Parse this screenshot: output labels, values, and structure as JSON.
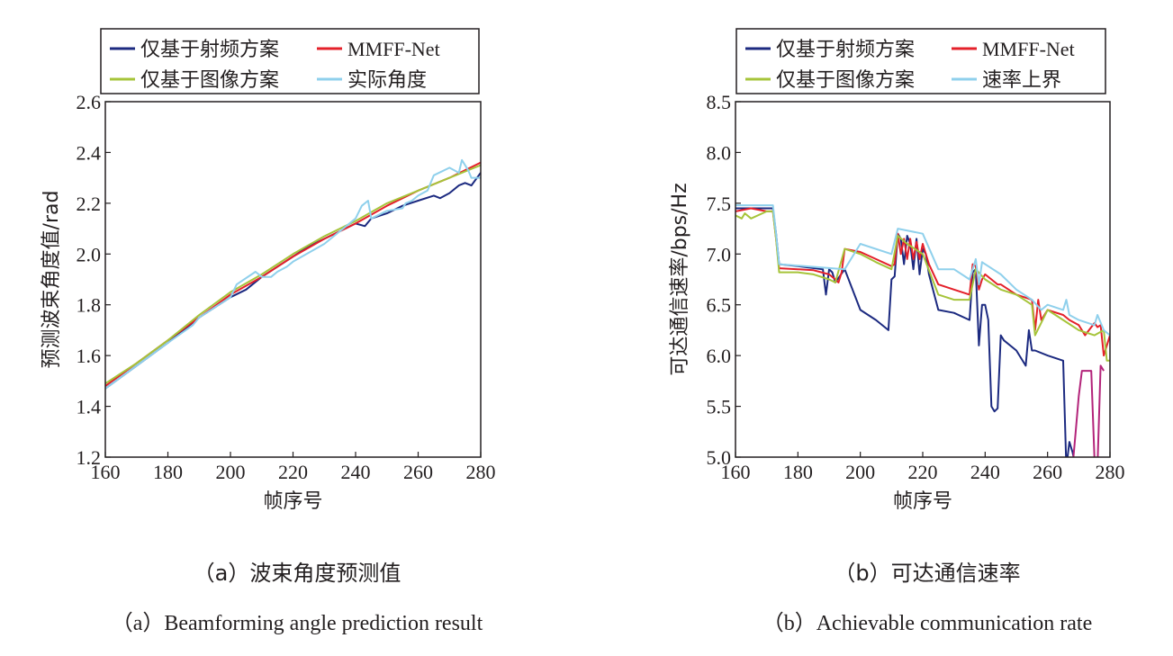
{
  "chart_data": [
    {
      "type": "line",
      "id": "a",
      "xlabel": "帧序号",
      "ylabel": "预测波束角度值/rad",
      "xlim": [
        160,
        280
      ],
      "ylim": [
        1.2,
        2.6
      ],
      "xticks": [
        160,
        180,
        200,
        220,
        240,
        260,
        280
      ],
      "yticks": [
        1.2,
        1.4,
        1.6,
        1.8,
        2.0,
        2.2,
        2.4,
        2.6
      ],
      "ytick_labels": [
        "1.2",
        "1.4",
        "1.6",
        "1.8",
        "2.0",
        "2.2",
        "2.4",
        "2.6"
      ],
      "legend_position": "top",
      "grid": false,
      "caption_zh": "（a）波束角度预测值",
      "caption_en": "（a）Beamforming angle prediction result",
      "series": [
        {
          "name": "仅基于射频方案",
          "color": "#1c2a80",
          "x": [
            160,
            170,
            180,
            190,
            200,
            205,
            210,
            215,
            220,
            225,
            230,
            235,
            240,
            243,
            245,
            250,
            255,
            260,
            265,
            267,
            270,
            273,
            275,
            277,
            280
          ],
          "y": [
            1.47,
            1.56,
            1.65,
            1.75,
            1.83,
            1.86,
            1.91,
            1.95,
            1.99,
            2.03,
            2.06,
            2.09,
            2.12,
            2.11,
            2.14,
            2.16,
            2.19,
            2.21,
            2.23,
            2.22,
            2.24,
            2.27,
            2.28,
            2.27,
            2.32
          ]
        },
        {
          "name": "MMFF-Net",
          "color": "#e4202a",
          "x": [
            160,
            170,
            180,
            190,
            200,
            210,
            220,
            230,
            240,
            250,
            260,
            270,
            280
          ],
          "y": [
            1.48,
            1.57,
            1.66,
            1.75,
            1.84,
            1.91,
            1.99,
            2.06,
            2.12,
            2.19,
            2.25,
            2.3,
            2.36
          ]
        },
        {
          "name": "仅基于图像方案",
          "color": "#a6c43a",
          "x": [
            160,
            170,
            180,
            190,
            200,
            210,
            220,
            230,
            240,
            250,
            260,
            270,
            280
          ],
          "y": [
            1.49,
            1.57,
            1.66,
            1.76,
            1.85,
            1.92,
            2.0,
            2.07,
            2.13,
            2.2,
            2.25,
            2.3,
            2.35
          ]
        },
        {
          "name": "实际角度",
          "color": "#8fd0ec",
          "x": [
            160,
            170,
            180,
            188,
            190,
            200,
            202,
            208,
            210,
            213,
            215,
            218,
            220,
            230,
            240,
            242,
            244,
            245,
            250,
            255,
            256,
            258,
            260,
            263,
            265,
            270,
            273,
            274,
            276,
            277,
            279,
            280
          ],
          "y": [
            1.47,
            1.56,
            1.65,
            1.72,
            1.75,
            1.83,
            1.88,
            1.93,
            1.91,
            1.91,
            1.93,
            1.95,
            1.97,
            2.04,
            2.14,
            2.19,
            2.21,
            2.14,
            2.17,
            2.18,
            2.2,
            2.21,
            2.23,
            2.25,
            2.31,
            2.34,
            2.32,
            2.37,
            2.33,
            2.3,
            2.3,
            2.3
          ]
        }
      ]
    },
    {
      "type": "line",
      "id": "b",
      "xlabel": "帧序号",
      "ylabel": "可达通信速率/bps/Hz",
      "xlim": [
        160,
        280
      ],
      "ylim": [
        5.0,
        8.5
      ],
      "xticks": [
        160,
        180,
        200,
        220,
        240,
        260,
        280
      ],
      "yticks": [
        5.0,
        5.5,
        6.0,
        6.5,
        7.0,
        7.5,
        8.0,
        8.5
      ],
      "ytick_labels": [
        "5.0",
        "5.5",
        "6.0",
        "6.5",
        "7.0",
        "7.5",
        "8.0",
        "8.5"
      ],
      "legend_position": "top",
      "grid": false,
      "caption_zh": "（b）可达通信速率",
      "caption_en": "（b）Achievable communication rate",
      "series": [
        {
          "name": "仅基于射频方案",
          "color": "#1c2a80",
          "x": [
            160,
            172,
            173,
            174,
            180,
            188,
            189,
            190,
            191,
            192,
            195,
            200,
            205,
            209,
            210,
            211,
            212,
            213,
            214,
            215,
            216,
            217,
            218,
            219,
            220,
            221,
            222,
            225,
            230,
            235,
            236,
            237,
            238,
            239,
            240,
            241,
            242,
            243,
            244,
            245,
            246,
            250,
            253,
            254,
            255,
            256,
            260,
            265,
            266,
            267,
            268,
            269
          ],
          "y": [
            7.45,
            7.45,
            7.2,
            6.9,
            6.88,
            6.85,
            6.6,
            6.85,
            6.82,
            6.72,
            6.85,
            6.45,
            6.35,
            6.25,
            6.75,
            6.78,
            7.2,
            7.15,
            6.9,
            7.18,
            7.1,
            6.85,
            7.15,
            6.8,
            7.05,
            7.0,
            6.8,
            6.45,
            6.42,
            6.35,
            6.82,
            6.85,
            6.1,
            6.5,
            6.5,
            6.35,
            5.5,
            5.45,
            5.48,
            6.2,
            6.15,
            6.05,
            5.9,
            6.25,
            6.05,
            6.05,
            6.0,
            5.95,
            4.9,
            5.15,
            5.05,
            4.9
          ]
        },
        {
          "name": "MMFF-Net",
          "color": "#e4202a",
          "x": [
            160,
            165,
            170,
            172,
            173,
            174,
            180,
            185,
            190,
            192,
            193,
            194,
            195,
            200,
            205,
            210,
            211,
            212,
            213,
            214,
            215,
            216,
            217,
            218,
            219,
            220,
            222,
            225,
            230,
            235,
            236,
            237,
            238,
            239,
            240,
            242,
            244,
            245,
            250,
            255,
            256,
            257,
            258,
            259,
            260,
            265,
            267,
            270,
            271,
            272,
            275,
            276,
            277,
            278,
            280
          ],
          "y": [
            7.42,
            7.45,
            7.42,
            7.42,
            7.15,
            6.86,
            6.85,
            6.84,
            6.8,
            6.75,
            6.72,
            6.82,
            7.05,
            7.02,
            6.95,
            6.88,
            6.9,
            7.2,
            7.0,
            7.15,
            6.95,
            7.15,
            6.95,
            7.12,
            6.95,
            7.1,
            6.9,
            6.7,
            6.65,
            6.6,
            6.9,
            6.88,
            6.65,
            6.75,
            6.8,
            6.75,
            6.7,
            6.7,
            6.6,
            6.55,
            6.25,
            6.55,
            6.35,
            6.4,
            6.45,
            6.4,
            6.35,
            6.3,
            6.25,
            6.2,
            6.32,
            6.28,
            6.3,
            6.0,
            6.2
          ]
        },
        {
          "name": "仅基于图像方案",
          "color": "#a6c43a",
          "x": [
            160,
            162,
            163,
            165,
            170,
            172,
            173,
            174,
            180,
            185,
            190,
            192,
            195,
            200,
            205,
            210,
            212,
            215,
            220,
            225,
            230,
            235,
            237,
            240,
            245,
            250,
            255,
            256,
            260,
            265,
            270,
            275,
            278,
            279,
            280
          ],
          "y": [
            7.38,
            7.35,
            7.4,
            7.35,
            7.42,
            7.42,
            7.15,
            6.82,
            6.82,
            6.8,
            6.75,
            6.72,
            7.05,
            7.0,
            6.92,
            6.85,
            7.18,
            7.1,
            7.0,
            6.6,
            6.55,
            6.55,
            6.85,
            6.75,
            6.65,
            6.6,
            6.5,
            6.2,
            6.45,
            6.35,
            6.25,
            6.2,
            6.25,
            5.95,
            5.95
          ]
        },
        {
          "name": "速率上界",
          "color": "#8fd0ec",
          "x": [
            160,
            172,
            173,
            174,
            195,
            200,
            210,
            212,
            220,
            225,
            230,
            235,
            237,
            238,
            239,
            240,
            245,
            250,
            255,
            258,
            260,
            265,
            266,
            267,
            270,
            275,
            276,
            278,
            280
          ],
          "y": [
            7.48,
            7.48,
            7.2,
            6.9,
            6.85,
            7.1,
            7.0,
            7.25,
            7.2,
            6.85,
            6.85,
            6.75,
            6.95,
            6.7,
            6.92,
            6.9,
            6.8,
            6.65,
            6.55,
            6.45,
            6.5,
            6.45,
            6.55,
            6.4,
            6.35,
            6.3,
            6.4,
            6.25,
            6.2
          ]
        },
        {
          "name": "magenta-tail",
          "color": "#b3247a",
          "x": [
            268,
            269,
            270,
            271,
            272,
            273,
            274,
            275,
            276,
            277,
            278
          ],
          "y": [
            4.9,
            5.25,
            5.6,
            5.85,
            5.85,
            5.85,
            5.85,
            5.0,
            4.9,
            5.9,
            5.85
          ],
          "legend": false
        }
      ]
    }
  ]
}
